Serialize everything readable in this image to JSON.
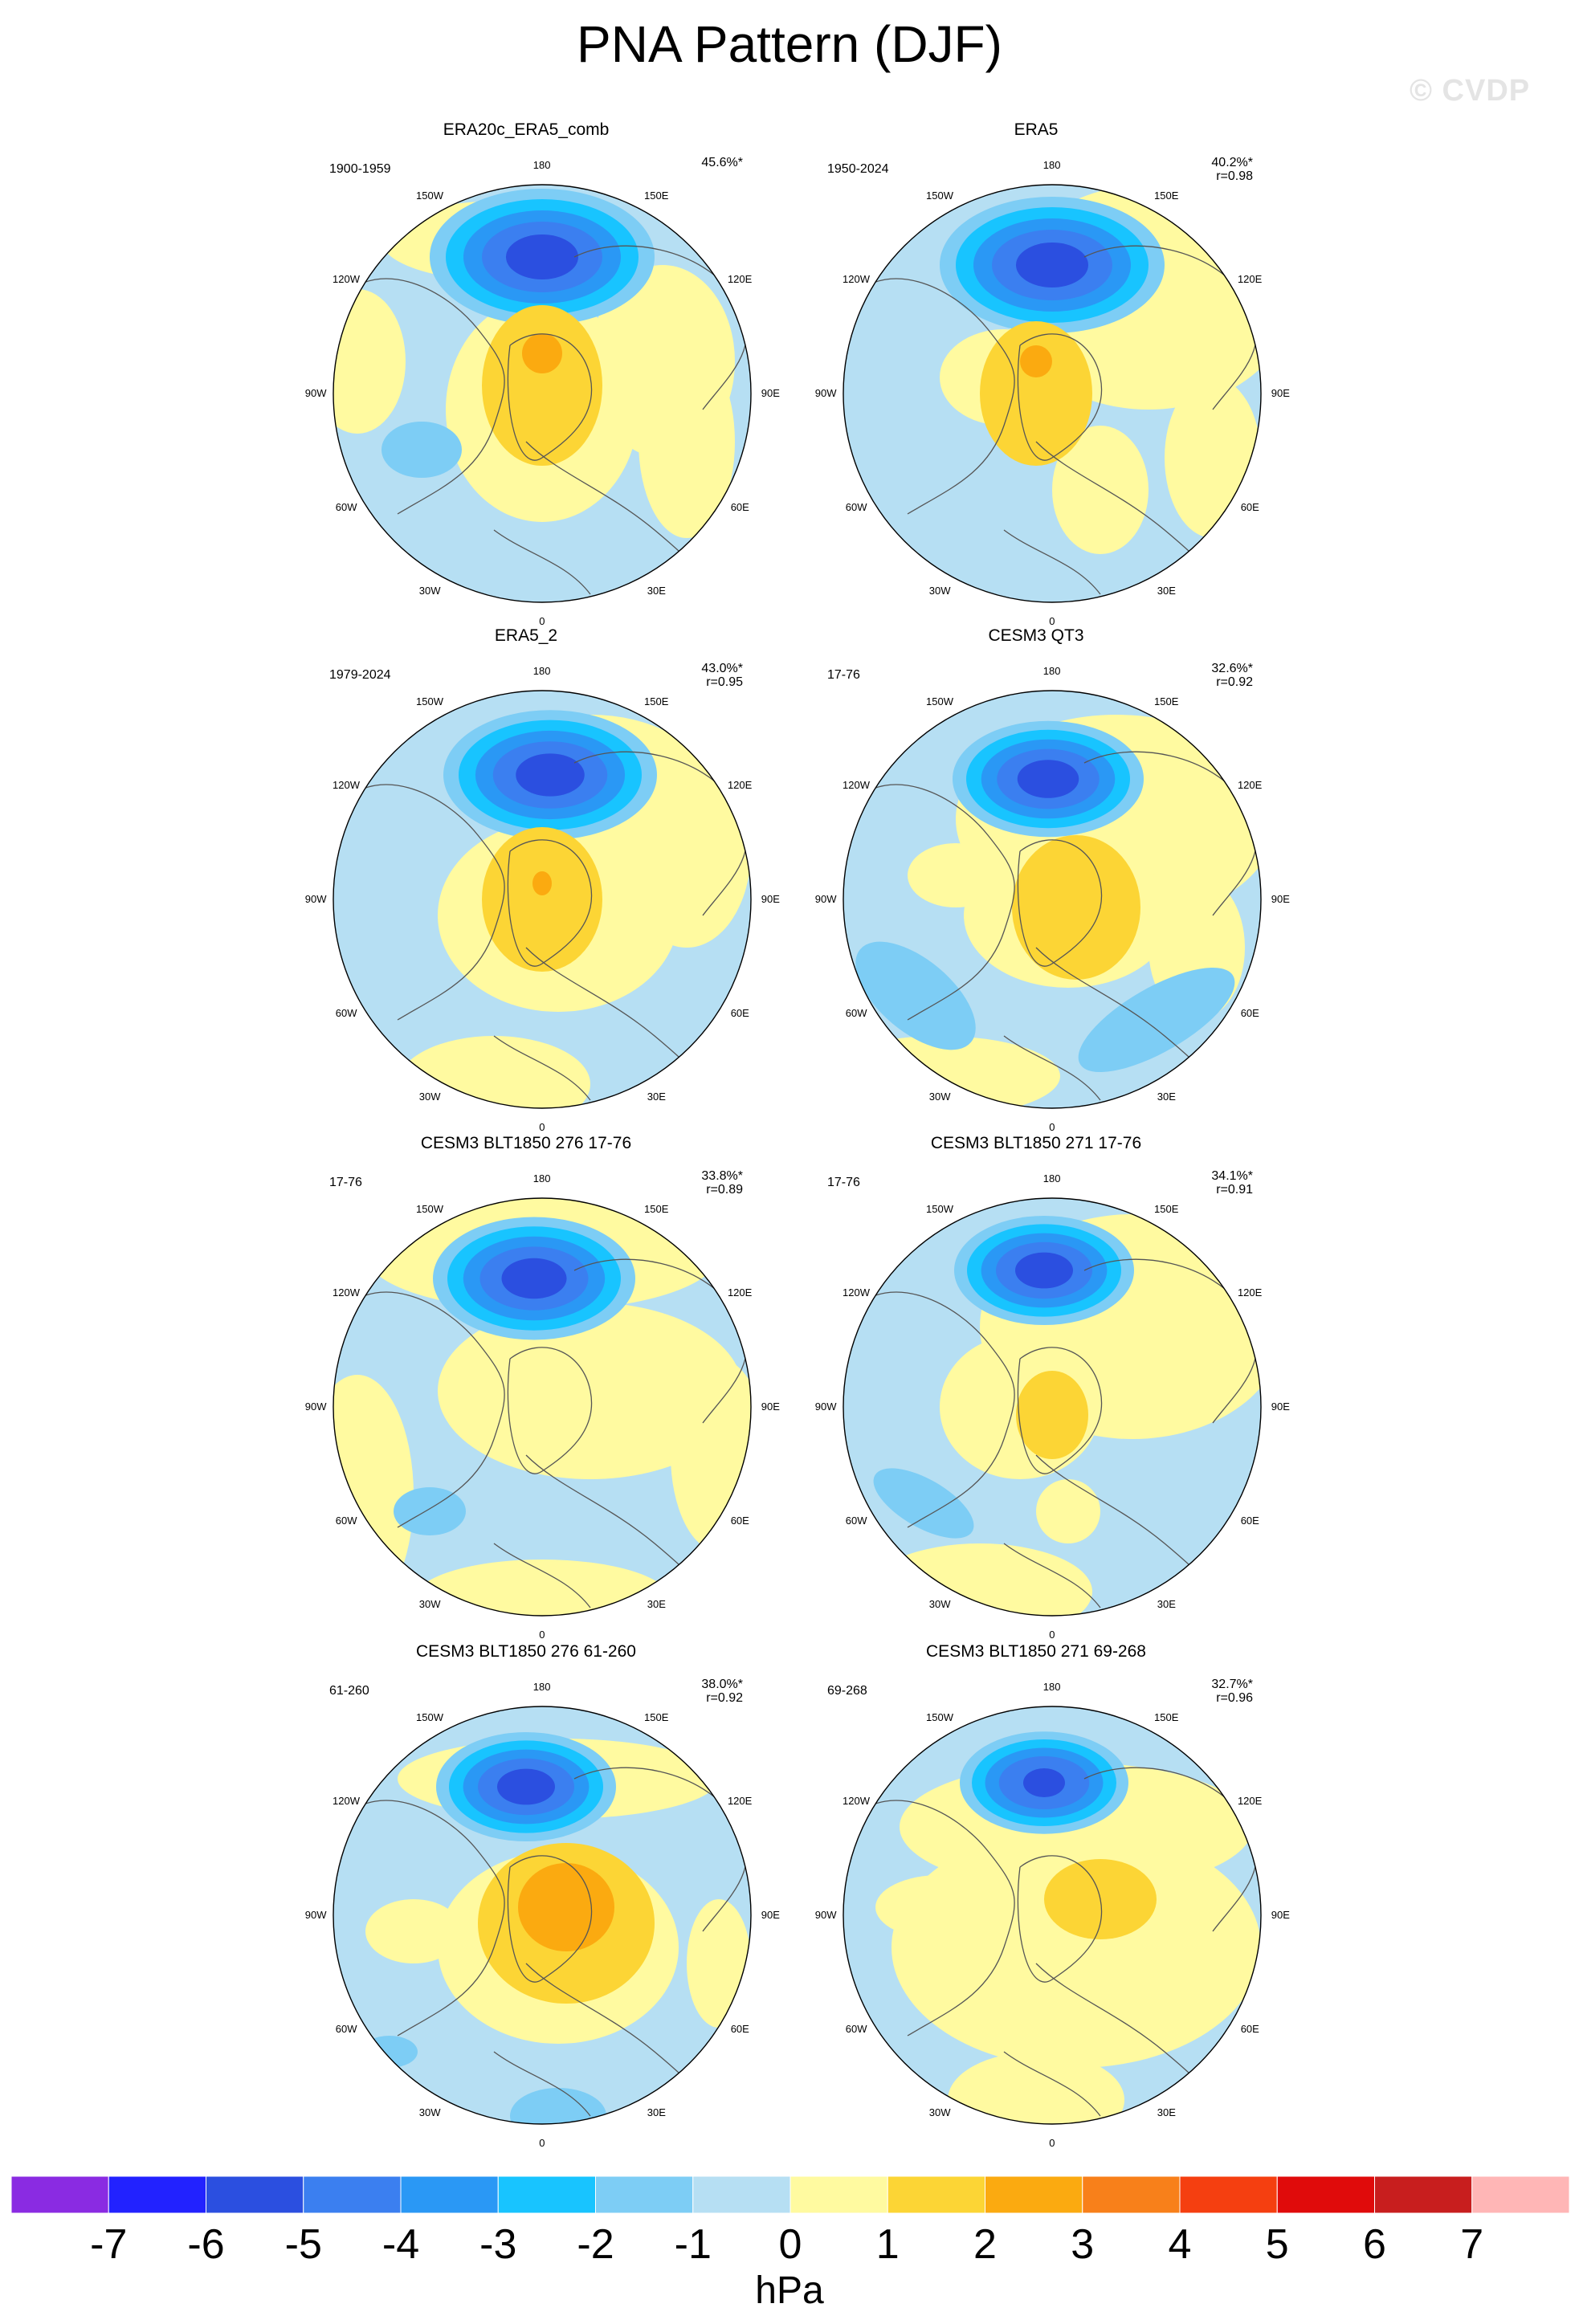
{
  "title": "PNA Pattern (DJF)",
  "watermark": "© CVDP",
  "lon_labels": [
    "180",
    "150E",
    "120E",
    "90E",
    "60E",
    "30E",
    "0",
    "30W",
    "60W",
    "90W",
    "120W",
    "150W"
  ],
  "panels": [
    {
      "title": "ERA20c_ERA5_comb",
      "period": "1900-1959",
      "pct": "45.6%*",
      "r": ""
    },
    {
      "title": "ERA5",
      "period": "1950-2024",
      "pct": "40.2%*",
      "r": "r=0.98"
    },
    {
      "title": "ERA5_2",
      "period": "1979-2024",
      "pct": "43.0%*",
      "r": "r=0.95"
    },
    {
      "title": "CESM3 QT3",
      "period": "17-76",
      "pct": "32.6%*",
      "r": "r=0.92"
    },
    {
      "title": "CESM3 BLT1850 276 17-76",
      "period": "17-76",
      "pct": "33.8%*",
      "r": "r=0.89"
    },
    {
      "title": "CESM3 BLT1850 271 17-76",
      "period": "17-76",
      "pct": "34.1%*",
      "r": "r=0.91"
    },
    {
      "title": "CESM3 BLT1850 276 61-260",
      "period": "61-260",
      "pct": "38.0%*",
      "r": "r=0.92"
    },
    {
      "title": "CESM3 BLT1850 271 69-268",
      "period": "69-268",
      "pct": "32.7%*",
      "r": "r=0.96"
    }
  ],
  "colorbar": {
    "unit": "hPa",
    "ticks": [
      "-7",
      "-6",
      "-5",
      "-4",
      "-3",
      "-2",
      "-1",
      "0",
      "1",
      "2",
      "3",
      "4",
      "5",
      "6",
      "7"
    ],
    "colors": [
      "#8a2be2",
      "#2222ff",
      "#2b4fe0",
      "#3b7ff0",
      "#2a98f5",
      "#18c4ff",
      "#7dcdf5",
      "#b6dff3",
      "#fffaa0",
      "#fcd535",
      "#fbaa10",
      "#f8801a",
      "#f53f10",
      "#e00b0b",
      "#c81e1e",
      "#ffb6b6"
    ]
  },
  "colors": {
    "ocean_light": "#b6dff3",
    "land_outline": "#555555",
    "pos_light": "#fffaa0"
  }
}
